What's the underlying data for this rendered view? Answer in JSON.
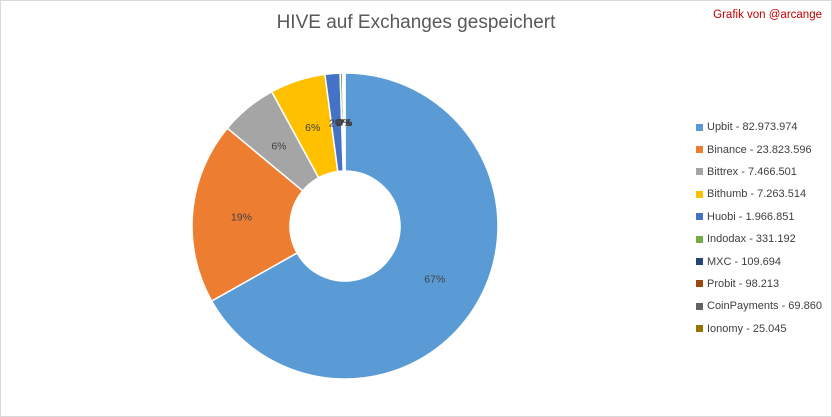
{
  "title": "HIVE auf Exchanges gespeichert",
  "credit": "Grafik von @arcange",
  "chart_data": {
    "type": "pie",
    "title": "HIVE auf Exchanges gespeichert",
    "legend_position": "right",
    "categories": [
      "Upbit",
      "Binance",
      "Bittrex",
      "Bithumb",
      "Huobi",
      "Indodax",
      "MXC",
      "Probit",
      "CoinPayments",
      "Ionomy"
    ],
    "values": [
      82973974,
      23823596,
      7466501,
      7263514,
      1966851,
      331192,
      109694,
      98213,
      69860,
      25045
    ],
    "legend_labels": [
      "Upbit - 82.973.974",
      "Binance - 23.823.596",
      "Bittrex - 7.466.501",
      "Bithumb - 7.263.514",
      "Huobi - 1.966.851",
      "Indodax - 331.192",
      "MXC - 109.694",
      "Probit - 98.213",
      "CoinPayments - 69.860",
      "Ionomy - 25.045"
    ],
    "data_labels": [
      "67%",
      "19%",
      "6%",
      "6%",
      "2%",
      "0%",
      "0%",
      "0%",
      "0%",
      "0%"
    ],
    "colors": [
      "#5b9bd5",
      "#ed7d31",
      "#a5a5a5",
      "#ffc000",
      "#4472c4",
      "#70ad47",
      "#264478",
      "#9e480e",
      "#636363",
      "#997300"
    ]
  }
}
